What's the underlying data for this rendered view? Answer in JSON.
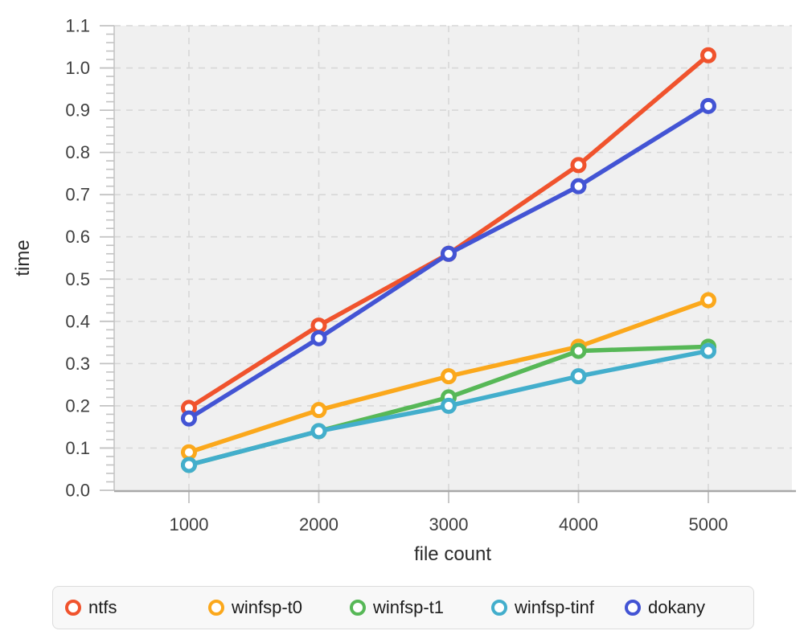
{
  "chart_data": {
    "type": "line",
    "title": "",
    "xlabel": "file count",
    "ylabel": "time",
    "x": [
      1000,
      2000,
      3000,
      4000,
      5000
    ],
    "xticks": [
      "1000",
      "2000",
      "3000",
      "4000",
      "5000"
    ],
    "yticks": [
      "0.0",
      "0.1",
      "0.2",
      "0.3",
      "0.4",
      "0.5",
      "0.6",
      "0.7",
      "0.8",
      "0.9",
      "1.0",
      "1.1"
    ],
    "ylim": [
      0,
      1.1
    ],
    "ytick_step": 0.1,
    "ytick_minor_step": 0.02,
    "grid": true,
    "grid_style": "dashed",
    "legend_position": "bottom",
    "plot_bg_color": "#f0f0f0",
    "grid_color": "#d7d7d7",
    "axis_color": "#a8a8a8",
    "series": [
      {
        "name": "ntfs",
        "color": "#f0532d",
        "values": [
          0.195,
          0.39,
          0.56,
          0.77,
          1.03
        ]
      },
      {
        "name": "winfsp-t0",
        "color": "#fba81c",
        "values": [
          0.09,
          0.19,
          0.27,
          0.34,
          0.45
        ]
      },
      {
        "name": "winfsp-t1",
        "color": "#57b857",
        "values": [
          0.06,
          0.14,
          0.22,
          0.33,
          0.34
        ]
      },
      {
        "name": "winfsp-tinf",
        "color": "#43aecc",
        "values": [
          0.06,
          0.14,
          0.2,
          0.27,
          0.33
        ]
      },
      {
        "name": "dokany",
        "color": "#4354d4",
        "values": [
          0.17,
          0.36,
          0.56,
          0.72,
          0.91
        ]
      }
    ]
  }
}
